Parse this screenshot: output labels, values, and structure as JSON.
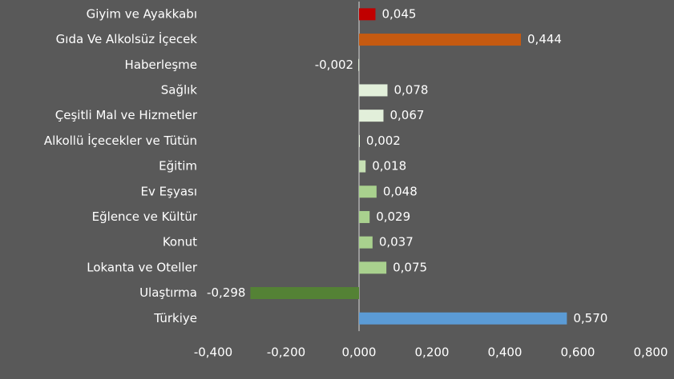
{
  "chart_data": {
    "type": "bar",
    "orientation": "horizontal",
    "categories": [
      "Giyim ve Ayakkabı",
      "Gıda Ve Alkolsüz İçecek",
      "Haberleşme",
      "Sağlık",
      "Çeşitli Mal ve Hizmetler",
      "Alkollü İçecekler ve Tütün",
      "Eğitim",
      "Ev Eşyası",
      "Eğlence ve Kültür",
      "Konut",
      "Lokanta ve Oteller",
      "Ulaştırma",
      "Türkiye"
    ],
    "values": [
      0.045,
      0.444,
      -0.002,
      0.078,
      0.067,
      0.002,
      0.018,
      0.048,
      0.029,
      0.037,
      0.075,
      -0.298,
      0.57
    ],
    "value_labels": [
      "0,045",
      "0,444",
      "-0,002",
      "0,078",
      "0,067",
      "0,002",
      "0,018",
      "0,048",
      "0,029",
      "0,037",
      "0,075",
      "-0,298",
      "0,570"
    ],
    "colors": [
      "#c00000",
      "#c55a11",
      "#e2efda",
      "#e2efda",
      "#e2efda",
      "#e2efda",
      "#c6e0b4",
      "#a9d18e",
      "#a9d18e",
      "#a9d18e",
      "#a9d18e",
      "#548235",
      "#5b9bd5"
    ],
    "xlim": [
      -0.4,
      0.8
    ],
    "xticks": [
      {
        "value": -0.4,
        "label": "-0,400"
      },
      {
        "value": -0.2,
        "label": "-0,200"
      },
      {
        "value": 0,
        "label": "0,000"
      },
      {
        "value": 0.2,
        "label": "0,200"
      },
      {
        "value": 0.4,
        "label": "0,400"
      },
      {
        "value": 0.6,
        "label": "0,600"
      },
      {
        "value": 0.8,
        "label": "0,800"
      }
    ]
  }
}
